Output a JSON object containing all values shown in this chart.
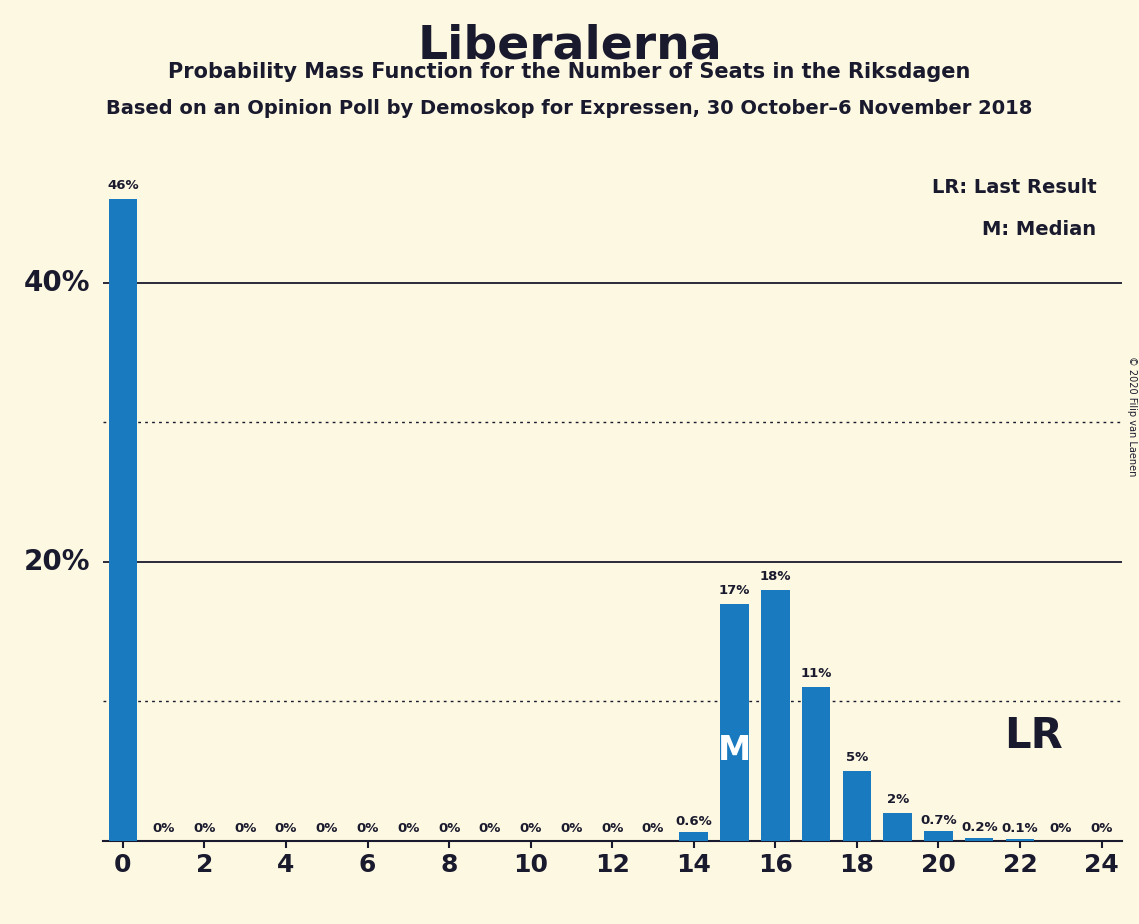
{
  "title": "Liberalerna",
  "subtitle1": "Probability Mass Function for the Number of Seats in the Riksdagen",
  "subtitle2": "Based on an Opinion Poll by Demoskop for Expressen, 30 October–6 November 2018",
  "copyright": "© 2020 Filip van Laenen",
  "seats": [
    0,
    1,
    2,
    3,
    4,
    5,
    6,
    7,
    8,
    9,
    10,
    11,
    12,
    13,
    14,
    15,
    16,
    17,
    18,
    19,
    20,
    21,
    22,
    23,
    24
  ],
  "probabilities": [
    46,
    0,
    0,
    0,
    0,
    0,
    0,
    0,
    0,
    0,
    0,
    0,
    0,
    0,
    0.6,
    17,
    18,
    11,
    5,
    2,
    0.7,
    0.2,
    0.1,
    0,
    0
  ],
  "bar_color": "#1a7abf",
  "background_color": "#fdf8e1",
  "text_color": "#1a1a2e",
  "median_seat": 15,
  "lr_seat": 20,
  "dotted_lines": [
    10,
    30
  ],
  "solid_lines": [
    20,
    40
  ],
  "xlim": [
    -0.5,
    24.5
  ],
  "ylim": [
    0,
    50
  ],
  "ytick_vals": [
    20,
    40
  ],
  "ytick_labels": [
    "20%",
    "40%"
  ],
  "legend_lr": "LR: Last Result",
  "legend_m": "M: Median",
  "bar_labels": {
    "0": "46%",
    "1": "0%",
    "2": "0%",
    "3": "0%",
    "4": "0%",
    "5": "0%",
    "6": "0%",
    "7": "0%",
    "8": "0%",
    "9": "0%",
    "10": "0%",
    "11": "0%",
    "12": "0%",
    "13": "0%",
    "14": "0.6%",
    "15": "17%",
    "16": "18%",
    "17": "11%",
    "18": "5%",
    "19": "2%",
    "20": "0.7%",
    "21": "0.2%",
    "22": "0.1%",
    "23": "0%",
    "24": "0%"
  }
}
